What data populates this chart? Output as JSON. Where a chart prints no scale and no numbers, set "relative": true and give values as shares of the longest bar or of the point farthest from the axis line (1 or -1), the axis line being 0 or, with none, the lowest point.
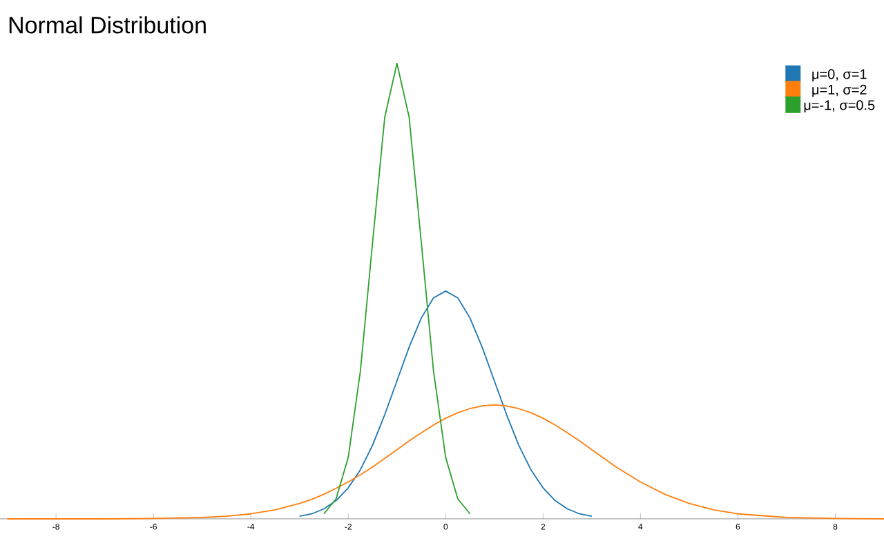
{
  "chart_data": {
    "type": "line",
    "title": "Normal Distribution",
    "relative": true,
    "legend": "top right",
    "grid": false,
    "xlim": [
      -9.15,
      9
    ],
    "xticks": [
      -8,
      -6,
      -4,
      -2,
      0,
      2,
      4,
      6,
      8
    ],
    "series": [
      {
        "name": "μ=0, σ=1",
        "color": "#1f77b4",
        "x": [
          -3,
          -2.75,
          -2.5,
          -2.25,
          -2,
          -1.75,
          -1.5,
          -1.25,
          -1,
          -0.75,
          -0.5,
          -0.25,
          0,
          0.25,
          0.5,
          0.75,
          1,
          1.25,
          1.5,
          1.75,
          2,
          2.25,
          2.5,
          2.75,
          3
        ],
        "values": [
          0.006,
          0.011,
          0.022,
          0.04,
          0.068,
          0.108,
          0.162,
          0.229,
          0.303,
          0.377,
          0.441,
          0.485,
          0.5,
          0.485,
          0.441,
          0.377,
          0.303,
          0.229,
          0.162,
          0.108,
          0.068,
          0.04,
          0.022,
          0.011,
          0.006
        ]
      },
      {
        "name": "μ=1, σ=2",
        "color": "#ff7f0e",
        "x": [
          -9,
          -8,
          -7,
          -6,
          -5,
          -4.5,
          -4,
          -3.5,
          -3,
          -2.75,
          -2.5,
          -2.25,
          -2,
          -1.75,
          -1.5,
          -1.25,
          -1,
          -0.75,
          -0.5,
          -0.25,
          0,
          0.25,
          0.5,
          0.75,
          1,
          1.25,
          1.5,
          1.75,
          2,
          2.25,
          2.5,
          2.75,
          3,
          3.5,
          4,
          4.5,
          5,
          5.5,
          6,
          7,
          8,
          9
        ],
        "values": [
          0,
          0,
          0,
          0.001,
          0.003,
          0.006,
          0.011,
          0.02,
          0.034,
          0.043,
          0.054,
          0.067,
          0.081,
          0.097,
          0.114,
          0.133,
          0.152,
          0.171,
          0.189,
          0.206,
          0.221,
          0.233,
          0.242,
          0.248,
          0.25,
          0.248,
          0.242,
          0.233,
          0.221,
          0.206,
          0.189,
          0.171,
          0.152,
          0.114,
          0.081,
          0.054,
          0.034,
          0.02,
          0.011,
          0.003,
          0.001,
          0
        ]
      },
      {
        "name": "μ=-1, σ=0.5",
        "color": "#2ca02c",
        "x": [
          -2.5,
          -2.25,
          -2,
          -1.75,
          -1.5,
          -1.25,
          -1,
          -0.75,
          -0.5,
          -0.25,
          0,
          0.25,
          0.5
        ],
        "values": [
          0.011,
          0.044,
          0.135,
          0.325,
          0.607,
          0.882,
          1,
          0.882,
          0.607,
          0.325,
          0.135,
          0.044,
          0.011
        ]
      }
    ]
  }
}
